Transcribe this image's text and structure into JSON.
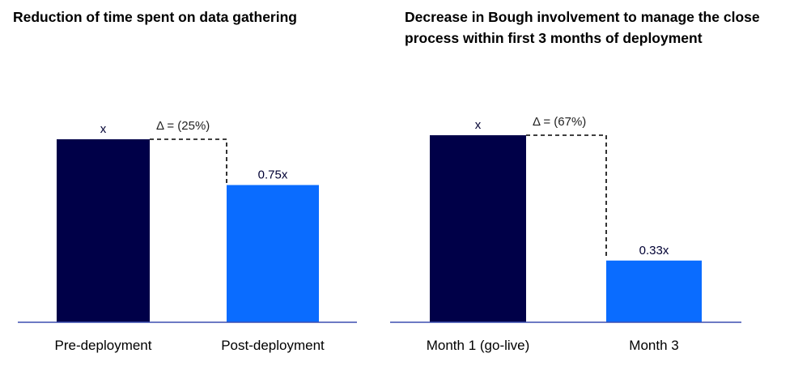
{
  "chart_data": [
    {
      "type": "bar",
      "title": "Reduction of time spent on data gathering",
      "categories": [
        "Pre-deployment",
        "Post-deployment"
      ],
      "values": [
        1.0,
        0.75
      ],
      "data_labels": [
        "x",
        "0.75x"
      ],
      "annotation": "Δ = (25%)",
      "colors": [
        "#000048",
        "#0a6cff"
      ],
      "ylim": [
        0,
        1.0
      ],
      "grid": false
    },
    {
      "type": "bar",
      "title": "Decrease in Bough involvement to manage the close process within first 3 months of deployment",
      "categories": [
        "Month 1 (go-live)",
        "Month 3"
      ],
      "values": [
        1.0,
        0.33
      ],
      "data_labels": [
        "x",
        "0.33x"
      ],
      "annotation": "Δ = (67%)",
      "colors": [
        "#000048",
        "#0a6cff"
      ],
      "ylim": [
        0,
        1.0
      ],
      "grid": false
    }
  ],
  "colors": {
    "axis": "#3b4fb0",
    "dark_bar": "#000048",
    "light_bar": "#0a6cff"
  }
}
